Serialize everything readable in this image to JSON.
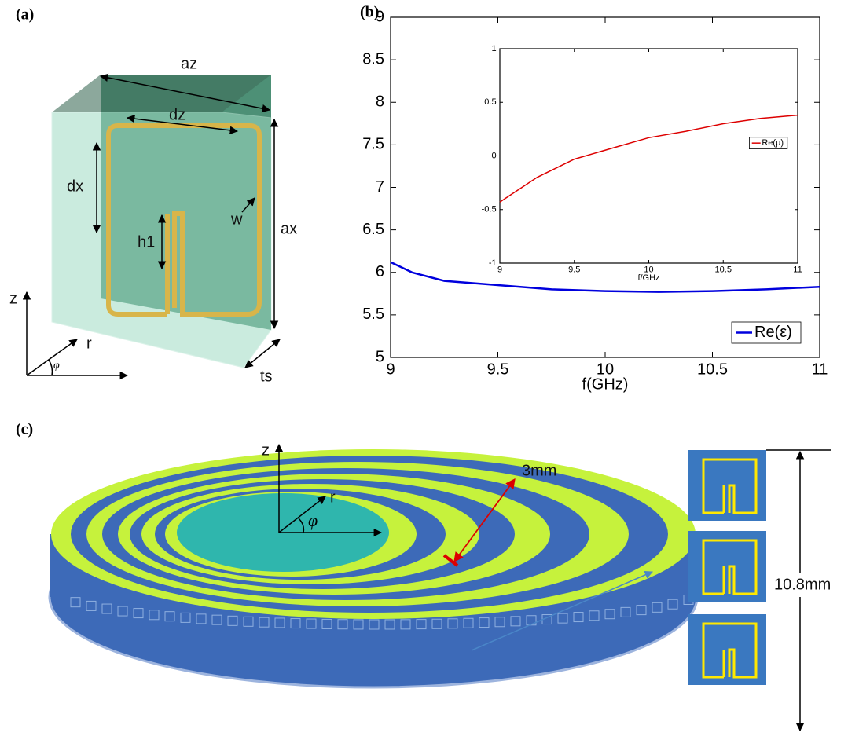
{
  "panels": {
    "a": {
      "label": "(a)",
      "dimensions": [
        "az",
        "dz",
        "dx",
        "w",
        "h1",
        "ax",
        "ts"
      ],
      "axes": [
        "z",
        "r",
        "φ"
      ]
    },
    "b": {
      "label": "(b)"
    },
    "c": {
      "label": "(c)",
      "axes": [
        "z",
        "r",
        "φ"
      ],
      "dimensions": [
        "3mm",
        "10.8mm"
      ]
    }
  },
  "chart_data": [
    {
      "type": "line",
      "xlabel": "f(GHz)",
      "x": [
        9,
        9.1,
        9.25,
        9.5,
        9.75,
        10,
        10.25,
        10.5,
        10.75,
        11
      ],
      "series": [
        {
          "name": "Re(ε)",
          "color": "#0000dd",
          "values": [
            6.12,
            6.0,
            5.9,
            5.85,
            5.8,
            5.78,
            5.77,
            5.78,
            5.8,
            5.83
          ]
        }
      ],
      "xlim": [
        9,
        11
      ],
      "xticks": [
        9,
        9.5,
        10,
        10.5,
        11
      ],
      "ylim": [
        5,
        9
      ],
      "yticks": [
        5,
        5.5,
        6,
        6.5,
        7,
        7.5,
        8,
        8.5,
        9
      ],
      "legend": "lower right"
    },
    {
      "type": "line",
      "xlabel": "f/GHz",
      "x": [
        9,
        9.25,
        9.5,
        9.75,
        10,
        10.25,
        10.5,
        10.75,
        11
      ],
      "series": [
        {
          "name": "Re(μ)",
          "color": "#dd0000",
          "values": [
            -0.43,
            -0.2,
            -0.03,
            0.07,
            0.17,
            0.23,
            0.3,
            0.35,
            0.38
          ]
        }
      ],
      "xlim": [
        9,
        11
      ],
      "xticks": [
        9,
        9.5,
        10,
        10.5,
        11
      ],
      "ylim": [
        -1,
        1
      ],
      "yticks": [
        -1,
        -0.5,
        0,
        0.5,
        1
      ],
      "legend": "right"
    }
  ]
}
